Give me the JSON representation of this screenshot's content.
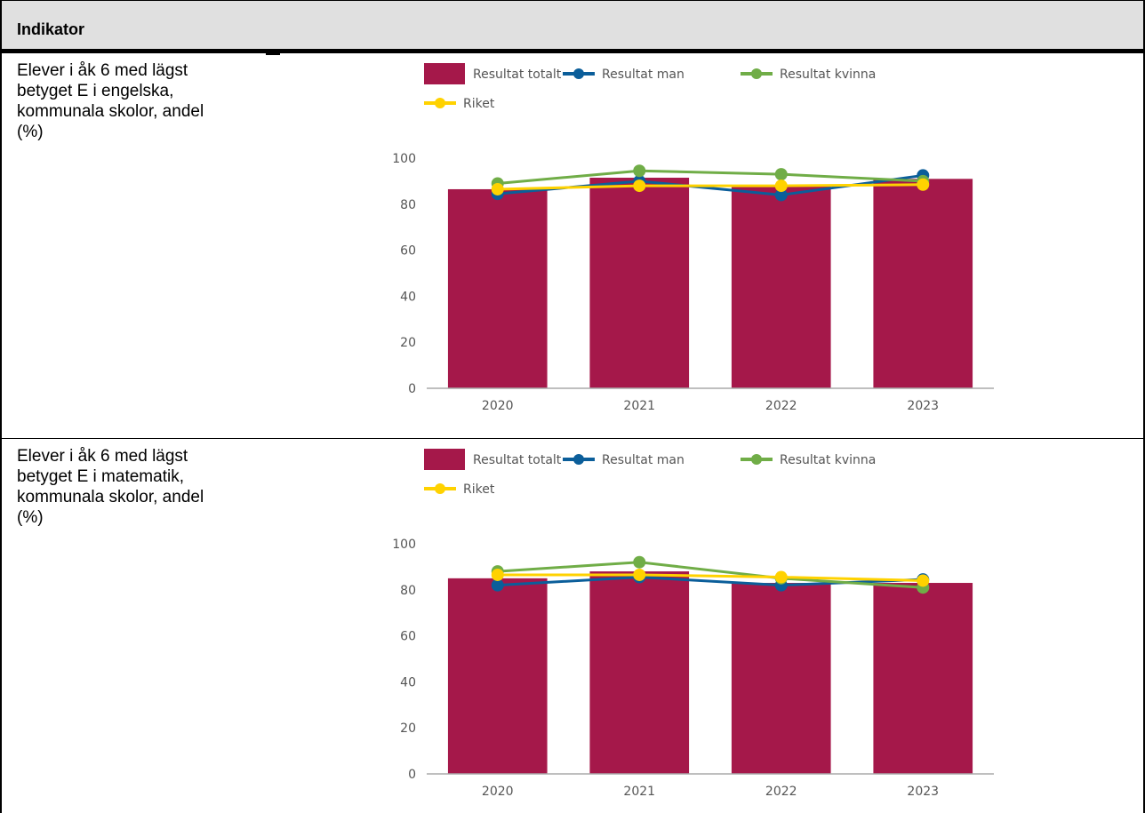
{
  "header": {
    "title": "Indikator"
  },
  "rows": [
    {
      "indicator": "Elever i åk 6 med lägst\nbetyget E  i engelska,\nkommunala skolor, andel\n(%)"
    },
    {
      "indicator": "Elever i åk 6 med lägst\nbetyget E  i matematik,\nkommunala skolor, andel\n(%)"
    }
  ],
  "colors": {
    "totalt": "#a5184a",
    "man": "#0b5e9a",
    "kvinna": "#70ad47",
    "riket": "#ffd200"
  },
  "chart_data": [
    {
      "type": "bar",
      "categories": [
        "2020",
        "2021",
        "2022",
        "2023"
      ],
      "ylim": [
        0,
        100
      ],
      "yticks": [
        "0",
        "20",
        "40",
        "60",
        "80",
        "100"
      ],
      "legend": [
        "Resultat totalt",
        "Resultat man",
        "Resultat kvinna",
        "Riket"
      ],
      "series": [
        {
          "name": "Resultat totalt",
          "kind": "bar",
          "values": [
            86.5,
            91.5,
            88.0,
            91.0
          ]
        },
        {
          "name": "Resultat man",
          "kind": "line",
          "values": [
            84.5,
            90.0,
            84.0,
            92.5
          ]
        },
        {
          "name": "Resultat kvinna",
          "kind": "line",
          "values": [
            89.0,
            94.5,
            93.0,
            90.0
          ]
        },
        {
          "name": "Riket",
          "kind": "line",
          "values": [
            86.5,
            88.0,
            88.0,
            88.5
          ]
        }
      ]
    },
    {
      "type": "bar",
      "categories": [
        "2020",
        "2021",
        "2022",
        "2023"
      ],
      "ylim": [
        0,
        100
      ],
      "yticks": [
        "0",
        "20",
        "40",
        "60",
        "80",
        "100"
      ],
      "legend": [
        "Resultat totalt",
        "Resultat man",
        "Resultat kvinna",
        "Riket"
      ],
      "series": [
        {
          "name": "Resultat totalt",
          "kind": "bar",
          "values": [
            85.0,
            88.0,
            83.0,
            83.0
          ]
        },
        {
          "name": "Resultat man",
          "kind": "line",
          "values": [
            82.0,
            85.5,
            82.0,
            84.5
          ]
        },
        {
          "name": "Resultat kvinna",
          "kind": "line",
          "values": [
            88.0,
            92.0,
            85.0,
            81.0
          ]
        },
        {
          "name": "Riket",
          "kind": "line",
          "values": [
            86.5,
            86.5,
            85.5,
            84.0
          ]
        }
      ]
    }
  ]
}
